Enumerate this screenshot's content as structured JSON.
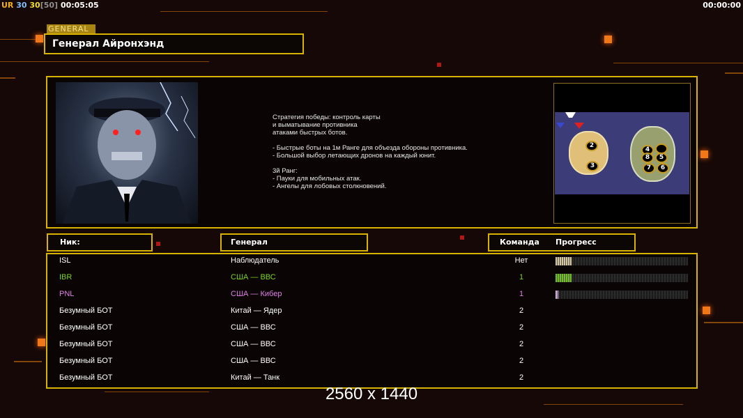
{
  "status_bar": {
    "faction": "UR",
    "val1": "30",
    "val2": "30",
    "cap": "[50]",
    "timer": "00:05:05",
    "right_timer": "00:00:00"
  },
  "general_tag": "GENERAL",
  "title": "Генерал Айронхэнд",
  "description": "Стратегия победы: контроль карты\nи выматывание противника\nатаками быстрых ботов.\n\n- Быстрые боты на 1м Ранге для объезда обороны противника.\n- Большой выбор летающих дронов на каждый юнит.\n\n3й Ранг:\n- Пауки для мобильных атак.\n- Ангелы для лобовых столкновений.",
  "map": {
    "slots": [
      "2",
      "3",
      "4",
      "",
      "8",
      "5",
      "7",
      "6"
    ]
  },
  "headers": {
    "nick": "Ник:",
    "general": "Генерал",
    "team": "Команда",
    "progress": "Прогресс"
  },
  "players": [
    {
      "nick": "ISL",
      "general": "Наблюдатель",
      "team": "Нет",
      "color": "#ffffff",
      "progress": 12,
      "bar_color": "#d8c8a0"
    },
    {
      "nick": "IBR",
      "general": "США — ВВС",
      "team": "1",
      "color": "#7ed321",
      "progress": 12,
      "bar_color": "#6ec020"
    },
    {
      "nick": "PNL",
      "general": "США — Кибер",
      "team": "1",
      "color": "#e080e8",
      "progress": 2,
      "bar_color": "#d8b0e8"
    },
    {
      "nick": "Безумный БОТ",
      "general": "Китай — Ядер",
      "team": "2",
      "color": "#ffffff"
    },
    {
      "nick": "Безумный БОТ",
      "general": "США — ВВС",
      "team": "2",
      "color": "#ffffff"
    },
    {
      "nick": "Безумный БОТ",
      "general": "США — ВВС",
      "team": "2",
      "color": "#ffffff"
    },
    {
      "nick": "Безумный БОТ",
      "general": "США — ВВС",
      "team": "2",
      "color": "#ffffff"
    },
    {
      "nick": "Безумный БОТ",
      "general": "Китай — Танк",
      "team": "2",
      "color": "#ffffff"
    }
  ],
  "resolution": "2560 x 1440",
  "colors": {
    "accent": "#d8b400",
    "background": "#150806"
  }
}
